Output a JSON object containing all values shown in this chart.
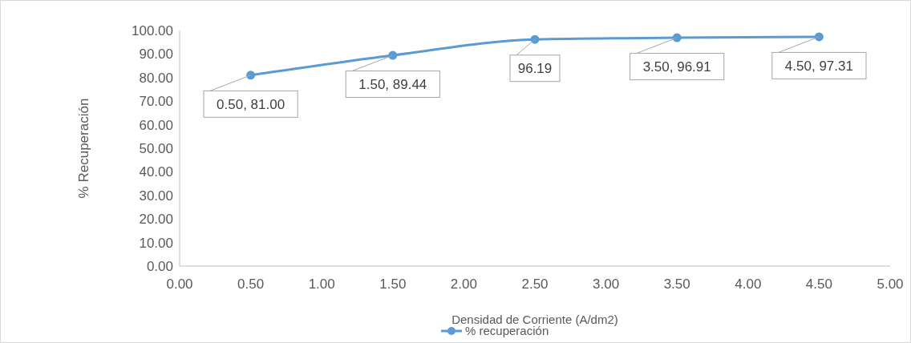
{
  "chart_data": {
    "type": "line",
    "xlabel": "Densidad de Corriente (A/dm2)",
    "ylabel": "% Recuperación",
    "x": [
      0.5,
      1.5,
      2.5,
      3.5,
      4.5
    ],
    "series": [
      {
        "name": "% recuperación",
        "color": "#5b9bd5",
        "values": [
          81.0,
          89.44,
          96.19,
          96.91,
          97.31
        ],
        "value_labels": [
          "0.50, 81.00",
          "1.50, 89.44",
          "96.19",
          "3.50, 96.91",
          "4.50, 97.31"
        ]
      }
    ],
    "xlim": [
      0,
      5
    ],
    "xticks": [
      {
        "value": 0,
        "label": "0.00"
      },
      {
        "value": 0.5,
        "label": "0.50"
      },
      {
        "value": 1,
        "label": "1.00"
      },
      {
        "value": 1.5,
        "label": "1.50"
      },
      {
        "value": 2,
        "label": "2.00"
      },
      {
        "value": 2.5,
        "label": "2.50"
      },
      {
        "value": 3,
        "label": "3.00"
      },
      {
        "value": 3.5,
        "label": "3.50"
      },
      {
        "value": 4,
        "label": "4.00"
      },
      {
        "value": 4.5,
        "label": "4.50"
      },
      {
        "value": 5,
        "label": "5.00"
      }
    ],
    "ylim": [
      0,
      100
    ],
    "yticks": [
      {
        "value": 0,
        "label": "0.00"
      },
      {
        "value": 10,
        "label": "10.00"
      },
      {
        "value": 20,
        "label": "20.00"
      },
      {
        "value": 30,
        "label": "30.00"
      },
      {
        "value": 40,
        "label": "40.00"
      },
      {
        "value": 50,
        "label": "50.00"
      },
      {
        "value": 60,
        "label": "60.00"
      },
      {
        "value": 70,
        "label": "70.00"
      },
      {
        "value": 80,
        "label": "80.00"
      },
      {
        "value": 90,
        "label": "90.00"
      },
      {
        "value": 100,
        "label": "100.00"
      }
    ],
    "grid": false,
    "legend": "bottom",
    "marker": "circle",
    "line_style": "solid"
  }
}
